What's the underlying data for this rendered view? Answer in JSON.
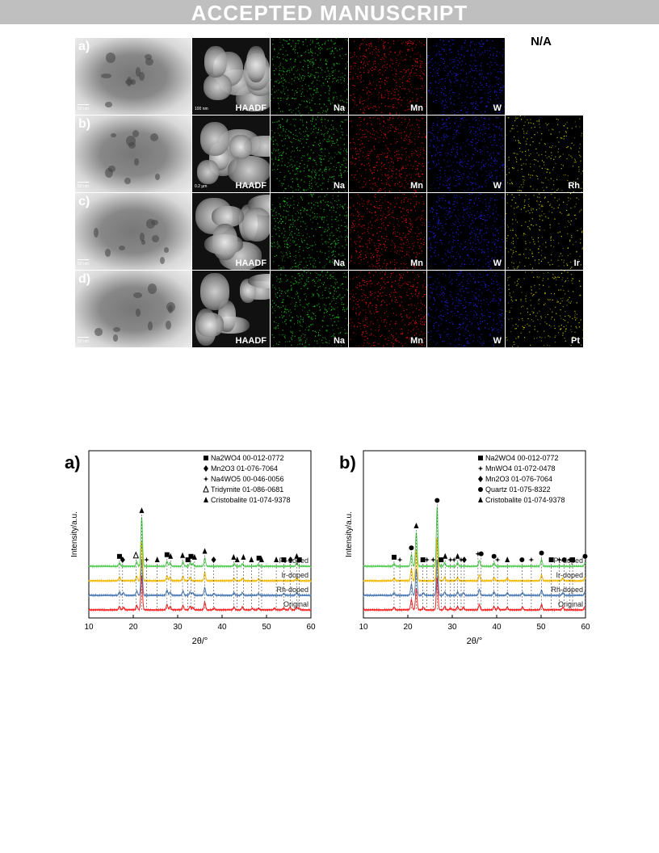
{
  "banner": {
    "text": "ACCEPTED MANUSCRIPT"
  },
  "figure1": {
    "na_text": "N/A",
    "rows": [
      {
        "letter": "a)",
        "scale_tem": "50 nm",
        "scale_haadf": "100 nm",
        "labels": [
          "HAADF",
          "Na",
          "Mn",
          "W"
        ],
        "rh_label": ""
      },
      {
        "letter": "b)",
        "scale_tem": "50 nm",
        "scale_haadf": "0.2 µm",
        "labels": [
          "HAADF",
          "Na",
          "Mn",
          "W"
        ],
        "rh_label": "Rh"
      },
      {
        "letter": "c)",
        "scale_tem": "50 nm",
        "scale_haadf": "",
        "labels": [
          "HAADF",
          "Na",
          "Mn",
          "W"
        ],
        "rh_label": "Ir"
      },
      {
        "letter": "d)",
        "scale_tem": "50 nm",
        "scale_haadf": "",
        "labels": [
          "HAADF",
          "Na",
          "Mn",
          "W"
        ],
        "rh_label": "Pt"
      }
    ],
    "map_colors": {
      "Na": "#22cc22",
      "Mn": "#ee1111",
      "W": "#2222ee",
      "dopant": "#cccc00"
    }
  },
  "chart_data": [
    {
      "type": "line",
      "panel_label": "a)",
      "xlabel": "2θ/°",
      "ylabel": "Intensity/a.u.",
      "xlim": [
        10,
        60
      ],
      "xticks": [
        10,
        20,
        30,
        40,
        50,
        60
      ],
      "legend_placement": "top-right",
      "legend": [
        {
          "marker": "square",
          "text": "Na2WO4 00-012-0772"
        },
        {
          "marker": "diamond",
          "text": "Mn2O3 01-076-7064"
        },
        {
          "marker": "star",
          "text": "Na4WO5  00-046-0056"
        },
        {
          "marker": "triangle-open",
          "text": "Tridymite 01-086-0681"
        },
        {
          "marker": "triangle",
          "text": "Cristobalite 01-074-9378"
        }
      ],
      "series": [
        {
          "name": "Original",
          "color": "#ff2222",
          "offset": 0,
          "peaks": [
            [
              16.9,
              4
            ],
            [
              17.8,
              3
            ],
            [
              20.8,
              5
            ],
            [
              21.9,
              40
            ],
            [
              27.6,
              6
            ],
            [
              28.3,
              4
            ],
            [
              31.2,
              5
            ],
            [
              32.8,
              4
            ],
            [
              33.4,
              3
            ],
            [
              36.1,
              9
            ],
            [
              38.2,
              2
            ],
            [
              42.7,
              3
            ],
            [
              44.6,
              3
            ],
            [
              46.8,
              2
            ],
            [
              48.2,
              2
            ],
            [
              51.8,
              2
            ],
            [
              53.9,
              2
            ],
            [
              55.3,
              3
            ],
            [
              56.8,
              3
            ],
            [
              57.3,
              2
            ]
          ]
        },
        {
          "name": "Rh-doped",
          "color": "#4a7ab5",
          "offset": 1,
          "peaks": [
            [
              16.9,
              4
            ],
            [
              17.8,
              3
            ],
            [
              20.8,
              5
            ],
            [
              21.9,
              42
            ],
            [
              27.6,
              6
            ],
            [
              28.3,
              4
            ],
            [
              31.2,
              5
            ],
            [
              32.8,
              4
            ],
            [
              33.4,
              3
            ],
            [
              36.1,
              9
            ],
            [
              38.2,
              2
            ],
            [
              42.7,
              3
            ],
            [
              44.6,
              3
            ],
            [
              48.2,
              2
            ],
            [
              53.9,
              2
            ],
            [
              56.8,
              3
            ]
          ]
        },
        {
          "name": "Ir-doped",
          "color": "#f2b800",
          "offset": 2,
          "peaks": [
            [
              16.9,
              4
            ],
            [
              20.8,
              5
            ],
            [
              21.9,
              46
            ],
            [
              27.6,
              6
            ],
            [
              28.3,
              4
            ],
            [
              31.2,
              5
            ],
            [
              32.8,
              4
            ],
            [
              36.1,
              10
            ],
            [
              42.7,
              3
            ],
            [
              44.6,
              3
            ],
            [
              48.2,
              2
            ],
            [
              56.8,
              3
            ]
          ]
        },
        {
          "name": "Pt-doped",
          "color": "#55cc55",
          "offset": 3,
          "peaks": [
            [
              16.9,
              4
            ],
            [
              20.8,
              5
            ],
            [
              21.9,
              58
            ],
            [
              27.6,
              6
            ],
            [
              28.3,
              4
            ],
            [
              31.2,
              5
            ],
            [
              32.8,
              4
            ],
            [
              33.4,
              3
            ],
            [
              36.1,
              10
            ],
            [
              42.7,
              3
            ],
            [
              44.6,
              3
            ],
            [
              48.2,
              2
            ],
            [
              56.8,
              4
            ]
          ]
        }
      ],
      "markers": [
        {
          "x": 16.9,
          "marker": "square"
        },
        {
          "x": 17.6,
          "marker": "diamond"
        },
        {
          "x": 20.6,
          "marker": "triangle-open"
        },
        {
          "x": 21.9,
          "marker": "triangle"
        },
        {
          "x": 23.0,
          "marker": "star"
        },
        {
          "x": 25.4,
          "marker": "triangle"
        },
        {
          "x": 27.6,
          "marker": "square"
        },
        {
          "x": 28.4,
          "marker": "triangle"
        },
        {
          "x": 31.1,
          "marker": "triangle"
        },
        {
          "x": 32.3,
          "marker": "square"
        },
        {
          "x": 33.0,
          "marker": "square"
        },
        {
          "x": 33.8,
          "marker": "triangle"
        },
        {
          "x": 36.1,
          "marker": "triangle"
        },
        {
          "x": 38.1,
          "marker": "diamond"
        },
        {
          "x": 42.6,
          "marker": "triangle"
        },
        {
          "x": 43.4,
          "marker": "triangle"
        },
        {
          "x": 44.8,
          "marker": "triangle"
        },
        {
          "x": 46.6,
          "marker": "triangle"
        },
        {
          "x": 48.3,
          "marker": "square"
        },
        {
          "x": 48.9,
          "marker": "triangle"
        },
        {
          "x": 52.2,
          "marker": "triangle"
        },
        {
          "x": 53.9,
          "marker": "square"
        },
        {
          "x": 55.4,
          "marker": "diamond"
        },
        {
          "x": 56.8,
          "marker": "triangle"
        },
        {
          "x": 57.4,
          "marker": "square"
        }
      ]
    },
    {
      "type": "line",
      "panel_label": "b)",
      "xlabel": "2θ/°",
      "ylabel": "Intensity/a.u.",
      "xlim": [
        10,
        60
      ],
      "xticks": [
        10,
        20,
        30,
        40,
        50,
        60
      ],
      "legend_placement": "top-right",
      "legend": [
        {
          "marker": "square",
          "text": "Na2WO4 00-012-0772"
        },
        {
          "marker": "star",
          "text": "MnWO4 01-072-0478"
        },
        {
          "marker": "diamond",
          "text": "Mn2O3 01-076-7064"
        },
        {
          "marker": "circle",
          "text": "Quartz 01-075-8322"
        },
        {
          "marker": "triangle",
          "text": "Cristobalite 01-074-9378"
        }
      ],
      "series": [
        {
          "name": "Original",
          "color": "#ff2222",
          "offset": 0,
          "peaks": [
            [
              16.9,
              3
            ],
            [
              20.8,
              12
            ],
            [
              21.9,
              25
            ],
            [
              23.5,
              3
            ],
            [
              26.6,
              38
            ],
            [
              28.3,
              4
            ],
            [
              29.6,
              2
            ],
            [
              31.2,
              4
            ],
            [
              32.5,
              3
            ],
            [
              36.1,
              6
            ],
            [
              39.4,
              4
            ],
            [
              40.3,
              3
            ],
            [
              42.4,
              3
            ],
            [
              45.8,
              3
            ],
            [
              50.1,
              6
            ],
            [
              54.9,
              3
            ],
            [
              59.9,
              4
            ]
          ]
        },
        {
          "name": "Rh-doped",
          "color": "#4a7ab5",
          "offset": 1,
          "peaks": [
            [
              16.9,
              3
            ],
            [
              20.8,
              13
            ],
            [
              21.9,
              30
            ],
            [
              23.5,
              3
            ],
            [
              26.6,
              42
            ],
            [
              28.3,
              4
            ],
            [
              31.2,
              4
            ],
            [
              32.5,
              3
            ],
            [
              36.1,
              7
            ],
            [
              39.4,
              4
            ],
            [
              42.4,
              3
            ],
            [
              45.8,
              3
            ],
            [
              50.1,
              6
            ],
            [
              54.9,
              3
            ],
            [
              59.9,
              4
            ]
          ]
        },
        {
          "name": "Ir-doped",
          "color": "#f2b800",
          "offset": 2,
          "peaks": [
            [
              16.9,
              3
            ],
            [
              20.8,
              14
            ],
            [
              21.9,
              36
            ],
            [
              26.6,
              50
            ],
            [
              28.3,
              4
            ],
            [
              31.2,
              4
            ],
            [
              36.1,
              7
            ],
            [
              39.4,
              4
            ],
            [
              42.4,
              3
            ],
            [
              50.1,
              7
            ],
            [
              54.9,
              3
            ],
            [
              59.9,
              4
            ]
          ]
        },
        {
          "name": "Pt-doped",
          "color": "#55cc55",
          "offset": 3,
          "peaks": [
            [
              16.9,
              3
            ],
            [
              20.8,
              14
            ],
            [
              21.9,
              40
            ],
            [
              26.6,
              70
            ],
            [
              28.3,
              4
            ],
            [
              31.2,
              4
            ],
            [
              36.1,
              7
            ],
            [
              39.4,
              4
            ],
            [
              50.1,
              8
            ],
            [
              59.9,
              4
            ]
          ]
        }
      ],
      "markers": [
        {
          "x": 16.9,
          "marker": "square"
        },
        {
          "x": 18.2,
          "marker": "star"
        },
        {
          "x": 20.8,
          "marker": "circle"
        },
        {
          "x": 21.9,
          "marker": "triangle"
        },
        {
          "x": 23.4,
          "marker": "square"
        },
        {
          "x": 24.3,
          "marker": "star"
        },
        {
          "x": 25.7,
          "marker": "star"
        },
        {
          "x": 26.6,
          "marker": "circle"
        },
        {
          "x": 27.5,
          "marker": "square"
        },
        {
          "x": 28.4,
          "marker": "triangle"
        },
        {
          "x": 29.6,
          "marker": "star"
        },
        {
          "x": 30.4,
          "marker": "star"
        },
        {
          "x": 31.2,
          "marker": "triangle"
        },
        {
          "x": 32.0,
          "marker": "star"
        },
        {
          "x": 32.7,
          "marker": "diamond"
        },
        {
          "x": 35.8,
          "marker": "star"
        },
        {
          "x": 36.5,
          "marker": "circle"
        },
        {
          "x": 39.4,
          "marker": "circle"
        },
        {
          "x": 40.2,
          "marker": "star"
        },
        {
          "x": 42.4,
          "marker": "triangle"
        },
        {
          "x": 45.7,
          "marker": "circle"
        },
        {
          "x": 47.8,
          "marker": "star"
        },
        {
          "x": 50.1,
          "marker": "circle"
        },
        {
          "x": 52.3,
          "marker": "square"
        },
        {
          "x": 54.1,
          "marker": "star"
        },
        {
          "x": 55.2,
          "marker": "circle"
        },
        {
          "x": 56.4,
          "marker": "star"
        },
        {
          "x": 57.1,
          "marker": "square"
        },
        {
          "x": 59.9,
          "marker": "circle"
        }
      ]
    }
  ]
}
